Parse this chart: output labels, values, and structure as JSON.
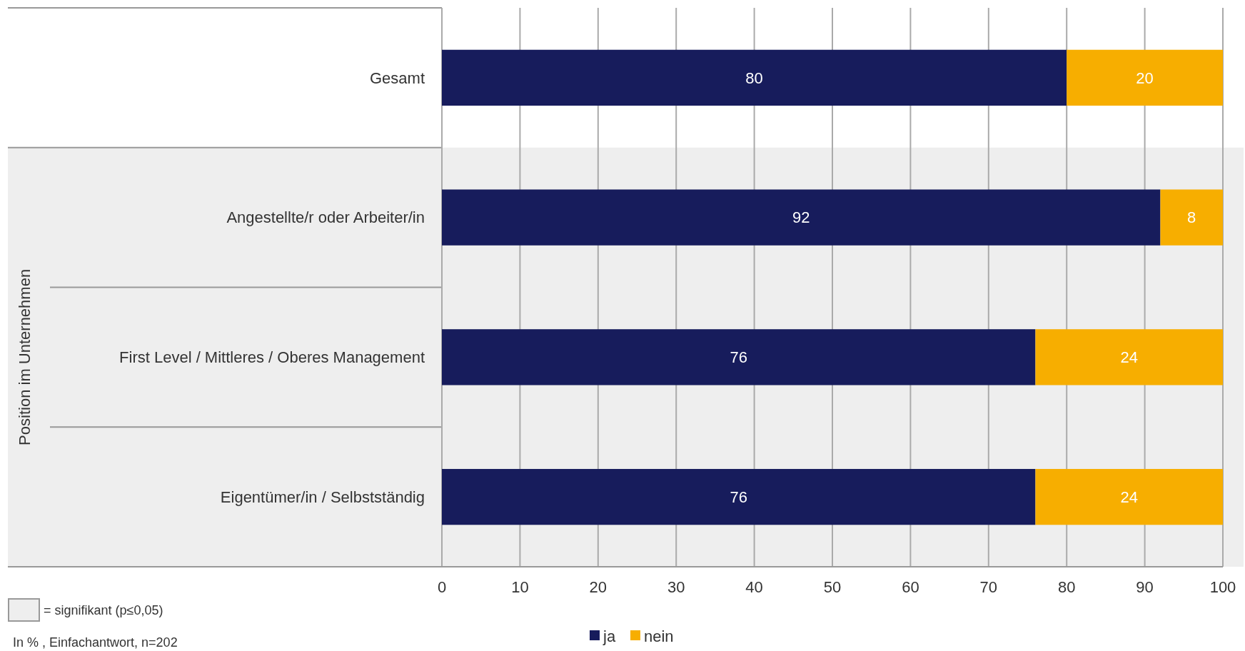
{
  "chart_data": {
    "type": "bar",
    "orientation": "horizontal",
    "stacked": true,
    "categories": [
      "Gesamt",
      "Angestellte/r oder Arbeiter/in",
      "First Level / Mittleres / Oberes Management",
      "Eigentümer/in / Selbstständig"
    ],
    "series": [
      {
        "name": "ja",
        "color": "#171c5c",
        "values": [
          80,
          92,
          76,
          76
        ]
      },
      {
        "name": "nein",
        "color": "#f7ae00",
        "values": [
          20,
          8,
          24,
          24
        ]
      }
    ],
    "bands": [
      {
        "axis": "y",
        "from": "Angestellte/r oder Arbeiter/in",
        "to": "Eigentümer/in / Selbstständig",
        "label": "Position im Unternehmen",
        "color": "#eeeeee"
      }
    ],
    "xlim": [
      0,
      100
    ],
    "xticks": [
      0,
      10,
      20,
      30,
      40,
      50,
      60,
      70,
      80,
      90,
      100
    ],
    "grid": "x",
    "legend": "bottom",
    "data_labels": true,
    "annotations": [
      "= signifikant (p≤0,05)",
      "In % , Einfachantwort, n=202"
    ]
  }
}
